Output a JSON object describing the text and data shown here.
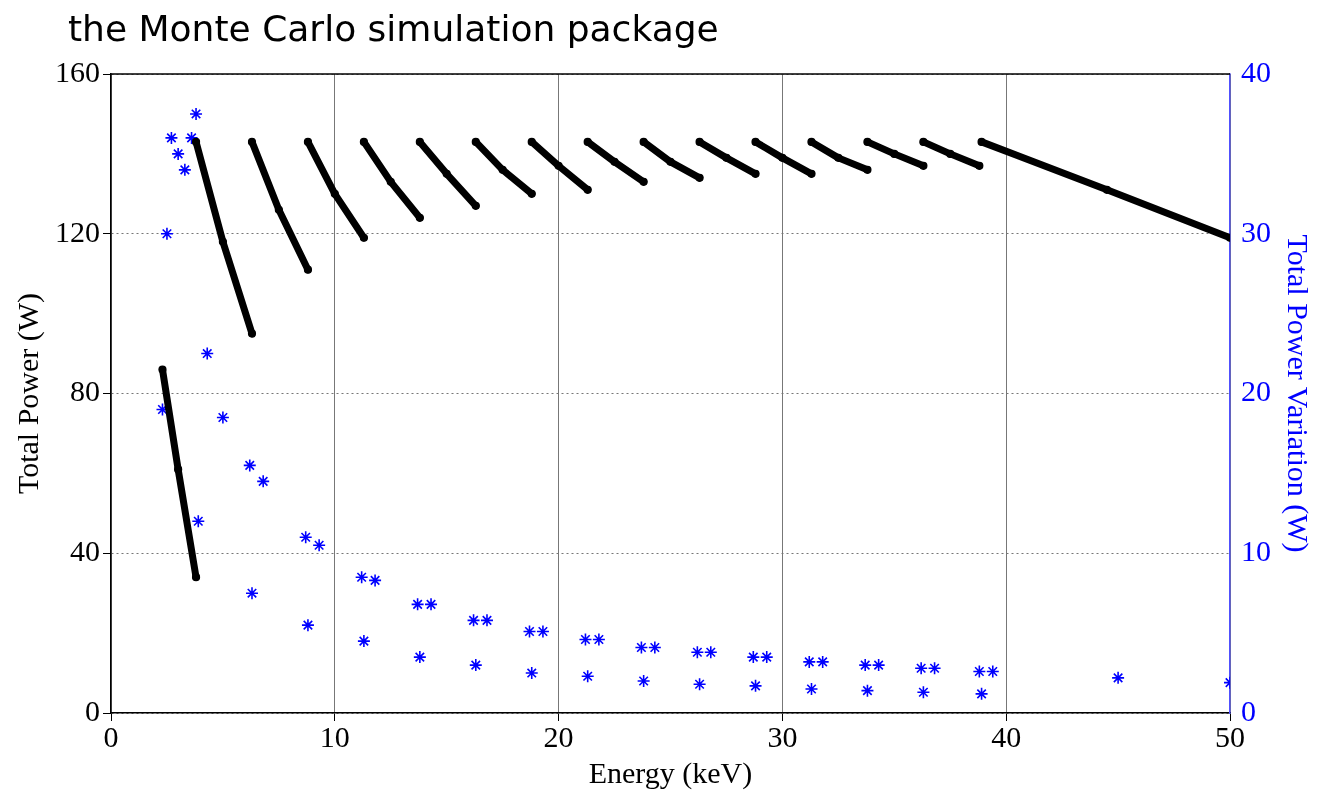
{
  "chart_data": {
    "type": "line",
    "title": "the Monte Carlo simulation package",
    "xlabel": "Energy (keV)",
    "ylabel": "Total Power (W)",
    "y2label": "Total Power Variation (W)",
    "xlim": [
      0,
      50
    ],
    "xticks": [
      0,
      10,
      20,
      30,
      40,
      50
    ],
    "ylim": [
      0,
      160
    ],
    "yticks": [
      0,
      40,
      80,
      120,
      160
    ],
    "y2lim": [
      0,
      40
    ],
    "y2ticks": [
      0,
      10,
      20,
      30,
      40
    ],
    "grid": true,
    "legend": false,
    "series": [
      {
        "color": "#000000",
        "marker": "circle",
        "x": [
          2.3,
          3.0,
          3.8
        ],
        "values": [
          86,
          61,
          34
        ]
      },
      {
        "color": "#000000",
        "marker": "circle",
        "x": [
          3.8,
          5.0,
          6.3
        ],
        "values": [
          143,
          118,
          95
        ]
      },
      {
        "color": "#000000",
        "marker": "circle",
        "x": [
          6.3,
          7.5,
          8.8
        ],
        "values": [
          143,
          126,
          111
        ]
      },
      {
        "color": "#000000",
        "marker": "circle",
        "x": [
          8.8,
          10.0,
          11.3
        ],
        "values": [
          143,
          130,
          119
        ]
      },
      {
        "color": "#000000",
        "marker": "circle",
        "x": [
          11.3,
          12.5,
          13.8
        ],
        "values": [
          143,
          133,
          124
        ]
      },
      {
        "color": "#000000",
        "marker": "circle",
        "x": [
          13.8,
          15.0,
          16.3
        ],
        "values": [
          143,
          135,
          127
        ]
      },
      {
        "color": "#000000",
        "marker": "circle",
        "x": [
          16.3,
          17.5,
          18.8
        ],
        "values": [
          143,
          136,
          130
        ]
      },
      {
        "color": "#000000",
        "marker": "circle",
        "x": [
          18.8,
          20.0,
          21.3
        ],
        "values": [
          143,
          137,
          131
        ]
      },
      {
        "color": "#000000",
        "marker": "circle",
        "x": [
          21.3,
          22.5,
          23.8
        ],
        "values": [
          143,
          138,
          133
        ]
      },
      {
        "color": "#000000",
        "marker": "circle",
        "x": [
          23.8,
          25.0,
          26.3
        ],
        "values": [
          143,
          138,
          134
        ]
      },
      {
        "color": "#000000",
        "marker": "circle",
        "x": [
          26.3,
          27.5,
          28.8
        ],
        "values": [
          143,
          139,
          135
        ]
      },
      {
        "color": "#000000",
        "marker": "circle",
        "x": [
          28.8,
          30.0,
          31.3
        ],
        "values": [
          143,
          139,
          135
        ]
      },
      {
        "color": "#000000",
        "marker": "circle",
        "x": [
          31.3,
          32.5,
          33.8
        ],
        "values": [
          143,
          139,
          136
        ]
      },
      {
        "color": "#000000",
        "marker": "circle",
        "x": [
          33.8,
          35.0,
          36.3
        ],
        "values": [
          143,
          140,
          137
        ]
      },
      {
        "color": "#000000",
        "marker": "circle",
        "x": [
          36.3,
          37.5,
          38.8
        ],
        "values": [
          143,
          140,
          137
        ]
      },
      {
        "color": "#000000",
        "marker": "circle",
        "x": [
          38.9,
          44.5,
          50
        ],
        "values": [
          143,
          131,
          119
        ]
      },
      {
        "type": "scatter",
        "color": "#0000ff",
        "marker": "cross",
        "axis": "y2",
        "x": [
          2.3,
          2.5,
          2.7,
          3.0,
          3.3,
          3.6,
          3.8,
          3.9,
          4.3,
          5.0,
          6.2,
          6.3,
          6.8,
          8.7,
          8.8,
          9.3,
          11.2,
          11.3,
          11.8,
          13.7,
          13.8,
          14.3,
          16.2,
          16.3,
          16.8,
          18.7,
          18.8,
          19.3,
          21.2,
          21.3,
          21.8,
          23.7,
          23.8,
          24.3,
          26.2,
          26.3,
          26.8,
          28.7,
          28.8,
          29.3,
          31.2,
          31.3,
          31.8,
          33.7,
          33.8,
          34.3,
          36.2,
          36.3,
          36.8,
          38.8,
          38.9,
          39.4,
          45,
          50
        ],
        "values": [
          19,
          30,
          36,
          35,
          34,
          36,
          37.5,
          12,
          22.5,
          18.5,
          15.5,
          7.5,
          14.5,
          11,
          5.5,
          10.5,
          8.5,
          4.5,
          8.3,
          6.8,
          3.5,
          6.8,
          5.8,
          3,
          5.8,
          5.1,
          2.5,
          5.1,
          4.6,
          2.3,
          4.6,
          4.1,
          2,
          4.1,
          3.8,
          1.8,
          3.8,
          3.5,
          1.7,
          3.5,
          3.2,
          1.5,
          3.2,
          3.0,
          1.4,
          3.0,
          2.8,
          1.3,
          2.8,
          2.6,
          1.2,
          2.6,
          2.2,
          1.9
        ]
      }
    ]
  }
}
